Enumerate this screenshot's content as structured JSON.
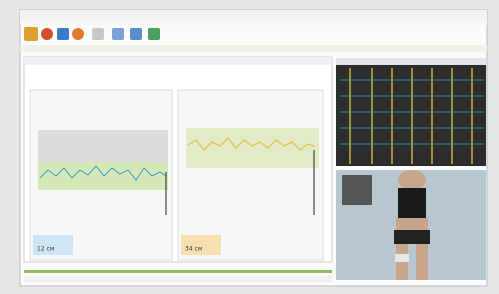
{
  "panels": [
    {
      "value": "12 см"
    },
    {
      "value": "34 см"
    }
  ]
}
